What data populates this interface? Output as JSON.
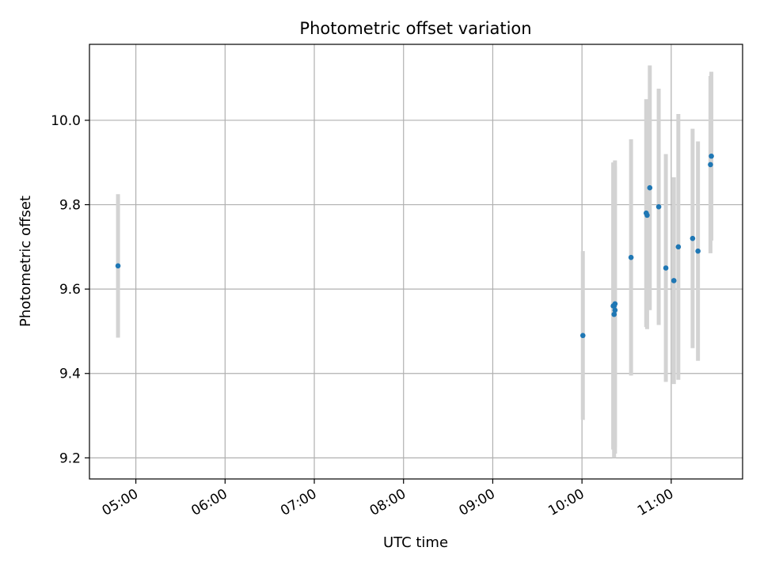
{
  "chart_data": {
    "type": "scatter",
    "title": "Photometric offset variation",
    "xlabel": "UTC time",
    "ylabel": "Photometric offset",
    "x_tick_labels": [
      "05:00",
      "06:00",
      "07:00",
      "08:00",
      "09:00",
      "10:00",
      "11:00"
    ],
    "x_ticks_hours": [
      5,
      6,
      7,
      8,
      9,
      10,
      11
    ],
    "y_ticks": [
      9.2,
      9.4,
      9.6,
      9.8,
      10.0
    ],
    "y_tick_labels": [
      "9.2",
      "9.4",
      "9.6",
      "9.8",
      "10.0"
    ],
    "xlim_hours": [
      4.48,
      11.8
    ],
    "ylim": [
      9.15,
      10.18
    ],
    "grid": true,
    "point_color": "#1f77b4",
    "errorbar_color": "#d3d3d3",
    "series": [
      {
        "x_hours": [
          4.8,
          10.01,
          10.35,
          10.36,
          10.36,
          10.37,
          10.37,
          10.55,
          10.72,
          10.73,
          10.76,
          10.86,
          10.94,
          11.03,
          11.08,
          11.24,
          11.3,
          11.44,
          11.45
        ],
        "y": [
          9.655,
          9.49,
          9.56,
          9.54,
          9.56,
          9.565,
          9.55,
          9.675,
          9.78,
          9.775,
          9.84,
          9.795,
          9.65,
          9.62,
          9.7,
          9.72,
          9.69,
          9.895,
          9.915
        ],
        "y_err": [
          0.17,
          0.2,
          0.34,
          0.34,
          0.34,
          0.34,
          0.34,
          0.28,
          0.27,
          0.27,
          0.29,
          0.28,
          0.27,
          0.245,
          0.315,
          0.26,
          0.26,
          0.21,
          0.2
        ]
      }
    ]
  }
}
